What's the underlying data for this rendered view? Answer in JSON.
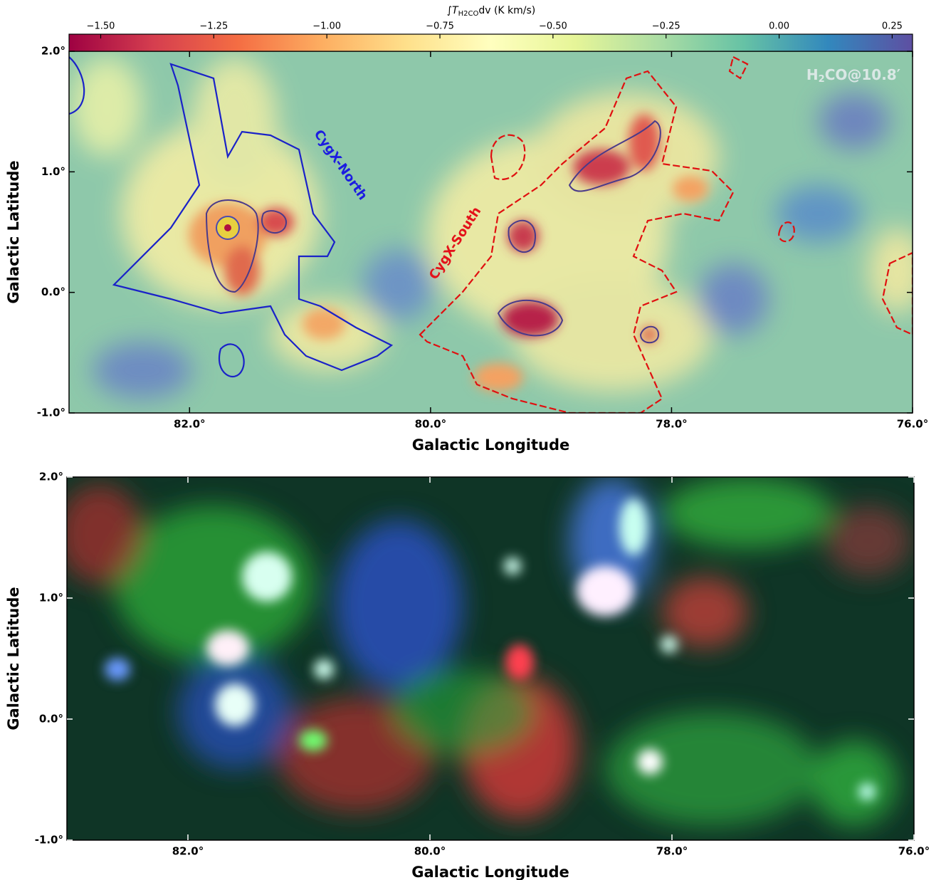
{
  "chart_data": [
    {
      "type": "heatmap",
      "xlabel": "Galactic Longitude",
      "ylabel": "Galactic Latitude",
      "xlim": [
        83,
        76
      ],
      "ylim": [
        -1,
        2
      ],
      "xticks": [
        {
          "value": 82,
          "label": "82.0°"
        },
        {
          "value": 80,
          "label": "80.0°"
        },
        {
          "value": 78,
          "label": "78.0°"
        },
        {
          "value": 76,
          "label": "76.0°"
        }
      ],
      "yticks": [
        {
          "value": 2,
          "label": "2.0°"
        },
        {
          "value": 1,
          "label": "1.0°"
        },
        {
          "value": 0,
          "label": "0.0°"
        },
        {
          "value": -1,
          "label": "-1.0°"
        }
      ],
      "colorbar": {
        "label": {
          "main": "∫T",
          "sub": "H2CO",
          "rest": "dv (K km/s)"
        },
        "clim": [
          -1.57,
          0.295
        ],
        "ticks": [
          {
            "value": -1.5,
            "label": "−1.50"
          },
          {
            "value": -1.25,
            "label": "−1.25"
          },
          {
            "value": -1,
            "label": "−1.00"
          },
          {
            "value": -0.75,
            "label": "−0.75"
          },
          {
            "value": -0.5,
            "label": "−0.50"
          },
          {
            "value": -0.25,
            "label": "−0.25"
          },
          {
            "value": 0,
            "label": "0.00"
          },
          0.25
        ],
        "colors": [
          "#9e0142",
          "#d53e4f",
          "#f46d43",
          "#fdae61",
          "#fee08b",
          "#ffffbf",
          "#e6f598",
          "#abdda4",
          "#66c2a5",
          "#3288bd",
          "#5e4fa2"
        ]
      },
      "annotations": [
        {
          "text": "CygX-North",
          "color": "#1c1ce0"
        },
        {
          "text": "CygX-South",
          "color": "#e3121a"
        }
      ],
      "label": {
        "pre": "H",
        "sub": "2",
        "post": "CO@10.8′"
      }
    },
    {
      "type": "image",
      "xlabel": "Galactic Longitude",
      "ylabel": "Galactic Latitude",
      "xlim": [
        83,
        76
      ],
      "ylim": [
        -1,
        2
      ],
      "xticks": [
        {
          "value": 82,
          "label": "82.0°"
        },
        {
          "value": 80,
          "label": "80.0°"
        },
        {
          "value": 78,
          "label": "78.0°"
        },
        {
          "value": 76,
          "label": "76.0°"
        }
      ],
      "yticks": [
        {
          "value": 2,
          "label": "2.0°"
        },
        {
          "value": 1,
          "label": "1.0°"
        },
        {
          "value": 0,
          "label": "0.0°"
        },
        {
          "value": -1,
          "label": "-1.0°"
        }
      ]
    }
  ]
}
